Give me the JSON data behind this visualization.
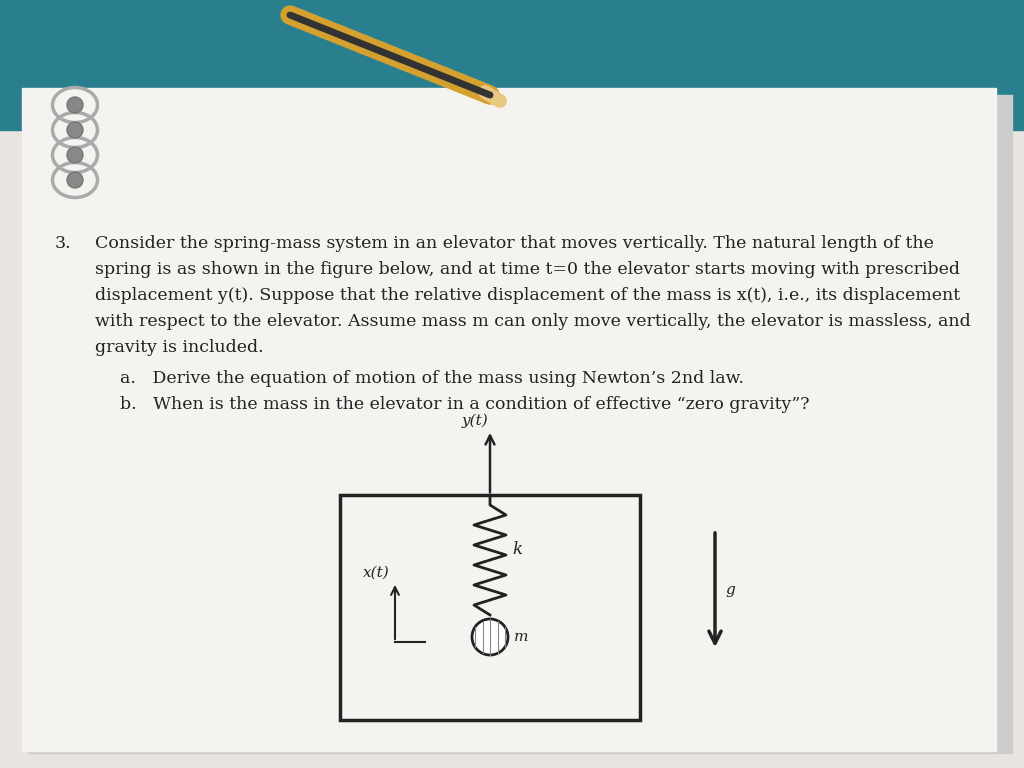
{
  "bg_paper": "#e8e5e0",
  "bg_teal": "#2a7f8f",
  "paper_white": "#f5f3f0",
  "text_color": "#222222",
  "line1": "Consider the spring-mass system in an elevator that moves vertically. The natural length of the",
  "line2": "spring is as shown in the figure below, and at time t=0 the elevator starts moving with prescribed",
  "line3": "displacement y(t). Suppose that the relative displacement of the mass is x(t), i.e., its displacement",
  "line4": "with respect to the elevator. Assume mass m can only move vertically, the elevator is massless, and",
  "line5": "gravity is included.",
  "line_a": "a.   Derive the equation of motion of the mass using Newton’s 2nd law.",
  "line_b": "b.   When is the mass in the elevator in a condition of effective “zero gravity”?",
  "font_main": 12.5,
  "font_label": 11
}
